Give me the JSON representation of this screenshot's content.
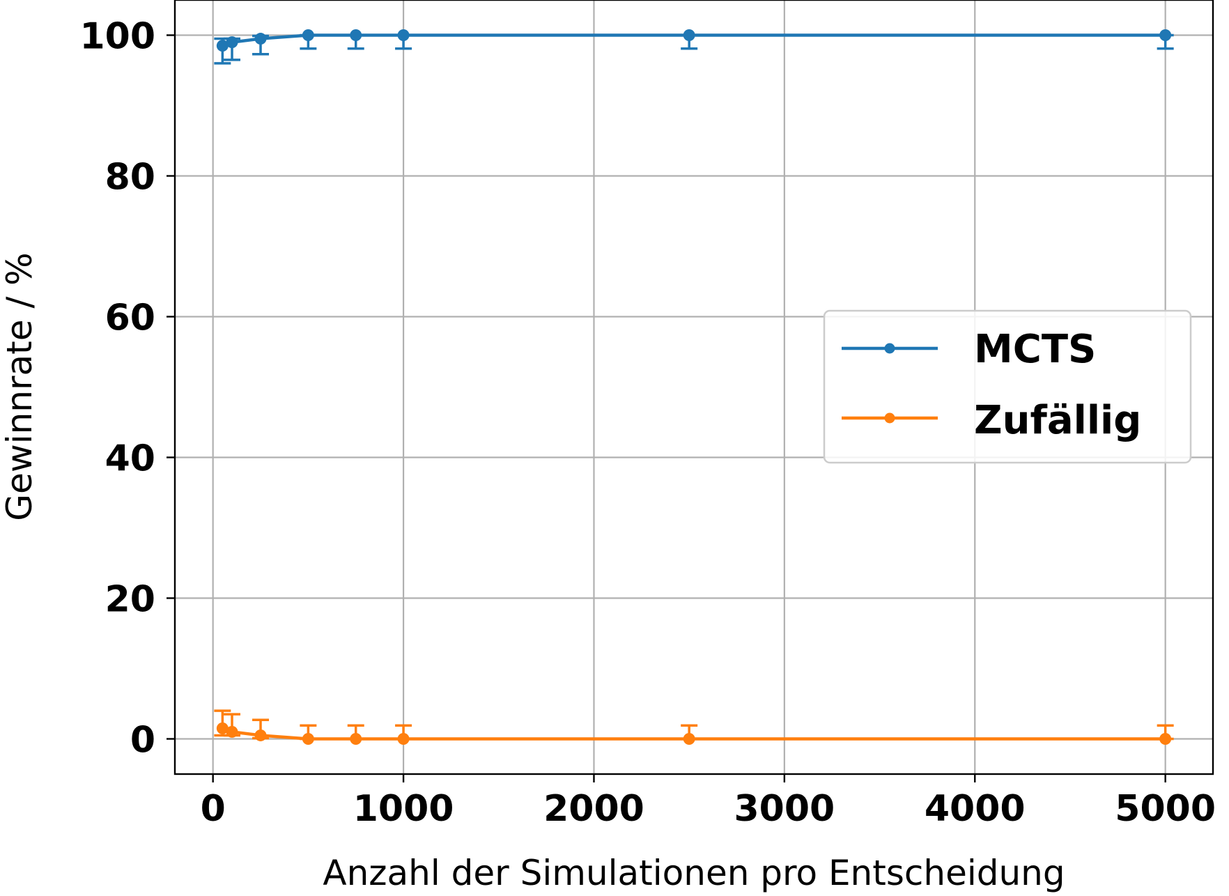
{
  "chart_data": {
    "type": "line",
    "title": "",
    "xlabel": "Anzahl der Simulationen pro Entscheidung",
    "ylabel": "Gewinnrate / %",
    "xlim": [
      -200,
      5250
    ],
    "ylim": [
      -5,
      105
    ],
    "x_ticks": [
      0,
      1000,
      2000,
      3000,
      4000,
      5000
    ],
    "y_ticks": [
      0,
      20,
      40,
      60,
      80,
      100
    ],
    "grid": true,
    "legend_position": "center-right",
    "x": [
      50,
      100,
      250,
      500,
      750,
      1000,
      2500,
      5000
    ],
    "series": [
      {
        "name": "MCTS",
        "color": "#1f77b4",
        "values": [
          98.5,
          99.0,
          99.5,
          100,
          100,
          100,
          100,
          100
        ],
        "err_lower": [
          2.5,
          2.5,
          2.2,
          1.9,
          1.9,
          1.9,
          1.9,
          1.9
        ],
        "err_upper": [
          1.0,
          0.5,
          0.4,
          0.0,
          0.0,
          0.0,
          0.0,
          0.0
        ]
      },
      {
        "name": "Zufällig",
        "color": "#ff7f0e",
        "values": [
          1.5,
          1.0,
          0.5,
          0,
          0,
          0,
          0,
          0
        ],
        "err_lower": [
          1.0,
          0.5,
          0.4,
          0.0,
          0.0,
          0.0,
          0.0,
          0.0
        ],
        "err_upper": [
          2.5,
          2.5,
          2.2,
          1.9,
          1.9,
          1.9,
          1.9,
          1.9
        ]
      }
    ]
  }
}
